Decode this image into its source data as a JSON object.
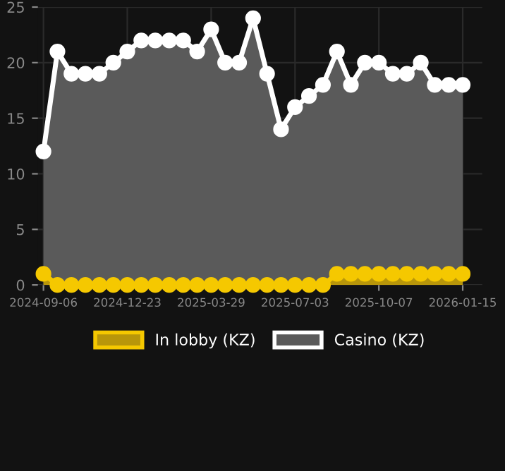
{
  "chart_data": {
    "type": "area",
    "categories": [
      "2024-09-06",
      null,
      null,
      null,
      null,
      null,
      "2024-12-23",
      null,
      null,
      null,
      null,
      null,
      "2025-03-29",
      null,
      null,
      null,
      null,
      null,
      "2025-07-03",
      null,
      null,
      null,
      null,
      null,
      "2025-10-07",
      null,
      null,
      null,
      null,
      null,
      "2026-01-15"
    ],
    "series": [
      {
        "name": "In lobby (KZ)",
        "color": "#f5c800",
        "values": [
          1,
          0,
          0,
          0,
          0,
          0,
          0,
          0,
          0,
          0,
          0,
          0,
          0,
          0,
          0,
          0,
          0,
          0,
          0,
          0,
          0,
          1,
          1,
          1,
          1,
          1,
          1,
          1,
          1,
          1,
          1
        ]
      },
      {
        "name": "Casino (KZ)",
        "color": "#ffffff",
        "values": [
          12,
          21,
          19,
          19,
          19,
          20,
          21,
          22,
          22,
          22,
          22,
          21,
          23,
          20,
          20,
          24,
          19,
          14,
          16,
          17,
          18,
          21,
          18,
          20,
          20,
          19,
          19,
          20,
          18,
          18,
          18
        ]
      }
    ],
    "ylim": [
      0,
      25
    ],
    "yticks": [
      0,
      5,
      10,
      15,
      20,
      25
    ],
    "grid": true,
    "legend": "bottom",
    "marker": "circle",
    "line_style": "solid"
  }
}
